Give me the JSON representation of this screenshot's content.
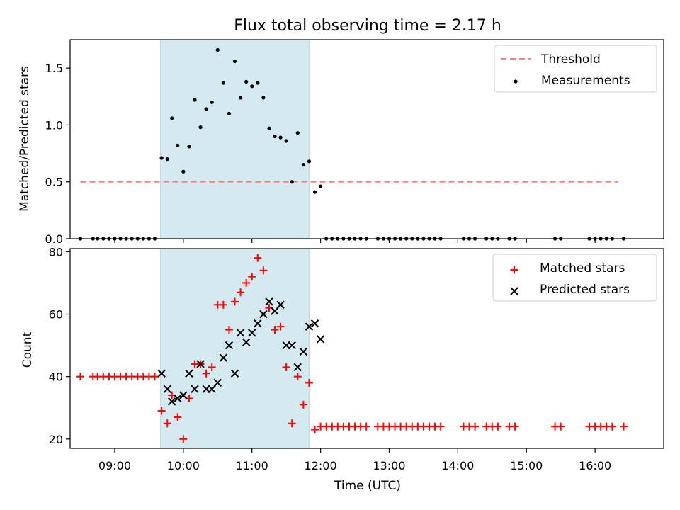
{
  "chart_data": [
    {
      "type": "scatter",
      "title": "Flux total observing time = 2.17 h",
      "xlabel": "",
      "ylabel": "Matched/Predicted stars",
      "ylim": [
        0,
        1.75
      ],
      "xlim": [
        "08:21",
        "17:00"
      ],
      "yticks": [
        0.0,
        0.5,
        1.0,
        1.5
      ],
      "ytick_labels": [
        "0.0",
        "0.5",
        "1.0",
        "1.5"
      ],
      "highlight_span": {
        "start": "09:40",
        "end": "11:50",
        "color": "#d4eaf0"
      },
      "legend": {
        "placement": "top-right"
      },
      "series": [
        {
          "name": "Threshold",
          "kind": "dashed-line",
          "color": "#ff7f7f",
          "x": [
            "08:30",
            "16:20"
          ],
          "values": [
            0.5,
            0.5
          ]
        },
        {
          "name": "Measurements",
          "kind": "points",
          "color": "#000000",
          "x": [
            "08:30",
            "08:41",
            "08:45",
            "08:50",
            "08:55",
            "09:00",
            "09:05",
            "09:10",
            "09:15",
            "09:20",
            "09:25",
            "09:30",
            "09:35",
            "09:41",
            "09:46",
            "09:50",
            "09:55",
            "10:00",
            "10:05",
            "10:10",
            "10:15",
            "10:20",
            "10:25",
            "10:30",
            "10:35",
            "10:40",
            "10:45",
            "10:50",
            "10:55",
            "11:00",
            "11:05",
            "11:10",
            "11:15",
            "11:20",
            "11:25",
            "11:30",
            "11:35",
            "11:40",
            "11:45",
            "11:50",
            "11:55",
            "12:00",
            "12:05",
            "12:10",
            "12:15",
            "12:20",
            "12:25",
            "12:30",
            "12:35",
            "12:40",
            "12:50",
            "12:55",
            "13:00",
            "13:05",
            "13:10",
            "13:15",
            "13:20",
            "13:25",
            "13:30",
            "13:35",
            "13:40",
            "13:45",
            "14:05",
            "14:10",
            "14:15",
            "14:25",
            "14:30",
            "14:35",
            "14:45",
            "14:50",
            "15:25",
            "15:30",
            "15:55",
            "16:00",
            "16:05",
            "16:10",
            "16:15",
            "16:25"
          ],
          "values": [
            0,
            0,
            0,
            0,
            0,
            0,
            0,
            0,
            0,
            0,
            0,
            0,
            0,
            0.71,
            0.7,
            1.06,
            0.82,
            0.59,
            0.81,
            1.22,
            0.98,
            1.14,
            1.2,
            1.66,
            1.37,
            1.1,
            1.56,
            1.24,
            1.38,
            1.34,
            1.37,
            1.24,
            0.97,
            0.9,
            0.89,
            0.86,
            0.5,
            0.93,
            0.65,
            0.68,
            0.41,
            0.46,
            0,
            0,
            0,
            0,
            0,
            0,
            0,
            0,
            0,
            0,
            0,
            0,
            0,
            0,
            0,
            0,
            0,
            0,
            0,
            0,
            0,
            0,
            0,
            0,
            0,
            0,
            0,
            0,
            0,
            0,
            0,
            0,
            0,
            0,
            0,
            0
          ]
        }
      ]
    },
    {
      "type": "scatter",
      "title": "",
      "xlabel": "Time (UTC)",
      "ylabel": "Count",
      "ylim": [
        17,
        81
      ],
      "xlim": [
        "08:21",
        "17:00"
      ],
      "yticks": [
        20,
        40,
        60,
        80
      ],
      "ytick_labels": [
        "20",
        "40",
        "60",
        "80"
      ],
      "xtick_values": [
        "09:00",
        "10:00",
        "11:00",
        "12:00",
        "13:00",
        "14:00",
        "15:00",
        "16:00"
      ],
      "xtick_labels": [
        "09:00",
        "10:00",
        "11:00",
        "12:00",
        "13:00",
        "14:00",
        "15:00",
        "16:00"
      ],
      "highlight_span": {
        "start": "09:40",
        "end": "11:50",
        "color": "#d4eaf0"
      },
      "legend": {
        "placement": "top-right"
      },
      "series": [
        {
          "name": "Matched stars",
          "marker": "plus",
          "color": "#ff0000",
          "x": [
            "08:30",
            "08:41",
            "08:45",
            "08:50",
            "08:55",
            "09:00",
            "09:05",
            "09:10",
            "09:15",
            "09:20",
            "09:25",
            "09:30",
            "09:35",
            "09:41",
            "09:46",
            "09:50",
            "09:55",
            "10:00",
            "10:05",
            "10:10",
            "10:15",
            "10:20",
            "10:25",
            "10:30",
            "10:35",
            "10:40",
            "10:45",
            "10:50",
            "10:55",
            "11:00",
            "11:05",
            "11:10",
            "11:15",
            "11:20",
            "11:25",
            "11:30",
            "11:35",
            "11:40",
            "11:45",
            "11:50",
            "11:55",
            "12:00",
            "12:05",
            "12:10",
            "12:15",
            "12:20",
            "12:25",
            "12:30",
            "12:35",
            "12:40",
            "12:50",
            "12:55",
            "13:00",
            "13:05",
            "13:10",
            "13:15",
            "13:20",
            "13:25",
            "13:30",
            "13:35",
            "13:40",
            "13:45",
            "14:05",
            "14:10",
            "14:15",
            "14:25",
            "14:30",
            "14:35",
            "14:45",
            "14:50",
            "15:25",
            "15:30",
            "15:55",
            "16:00",
            "16:05",
            "16:10",
            "16:15",
            "16:25"
          ],
          "values": [
            40,
            40,
            40,
            40,
            40,
            40,
            40,
            40,
            40,
            40,
            40,
            40,
            40,
            29,
            25,
            34,
            27,
            20,
            33,
            44,
            44,
            41,
            43,
            63,
            63,
            55,
            64,
            67,
            70,
            72,
            78,
            74,
            62,
            55,
            56,
            43,
            25,
            40,
            31,
            38,
            23,
            24,
            24,
            24,
            24,
            24,
            24,
            24,
            24,
            24,
            24,
            24,
            24,
            24,
            24,
            24,
            24,
            24,
            24,
            24,
            24,
            24,
            24,
            24,
            24,
            24,
            24,
            24,
            24,
            24,
            24,
            24,
            24,
            24,
            24,
            24,
            24,
            24
          ]
        },
        {
          "name": "Predicted stars",
          "marker": "x",
          "color": "#000000",
          "x": [
            "09:41",
            "09:46",
            "09:50",
            "09:55",
            "10:00",
            "10:05",
            "10:10",
            "10:15",
            "10:20",
            "10:25",
            "10:30",
            "10:35",
            "10:40",
            "10:45",
            "10:50",
            "10:55",
            "11:00",
            "11:05",
            "11:10",
            "11:15",
            "11:20",
            "11:25",
            "11:30",
            "11:35",
            "11:40",
            "11:45",
            "11:50",
            "11:55",
            "12:00"
          ],
          "values": [
            41,
            36,
            32,
            33,
            34,
            41,
            36,
            44,
            36,
            36,
            38,
            46,
            50,
            41,
            54,
            51,
            54,
            57,
            60,
            64,
            61,
            63,
            50,
            50,
            43,
            48,
            56,
            57,
            52
          ]
        }
      ]
    }
  ]
}
